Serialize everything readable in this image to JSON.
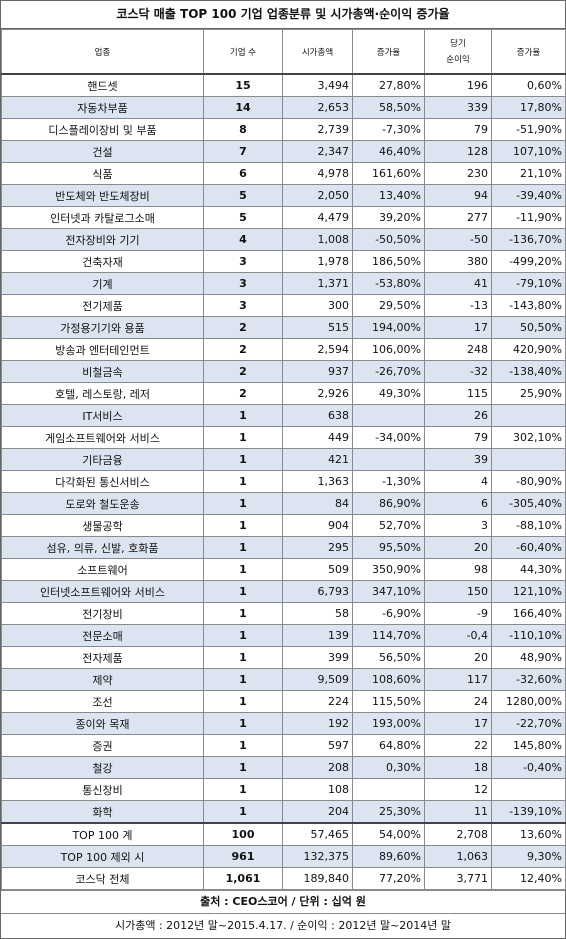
{
  "title": "코스닥 매출 TOP 100 기업 업종분류 및 시가총액·순이익 증가율",
  "headers": {
    "industry": "업종",
    "count": "기업 수",
    "mcap": "시가총액",
    "mcap_growth": "증가율",
    "profit_line1": "당기",
    "profit_line2": "순이익",
    "profit_growth": "증가율"
  },
  "rows": [
    {
      "industry": "핸드셋",
      "count": "15",
      "mcap": "3,494",
      "mcap_growth": "27,80%",
      "profit": "196",
      "profit_growth": "0,60%"
    },
    {
      "industry": "자동차부품",
      "count": "14",
      "mcap": "2,653",
      "mcap_growth": "58,50%",
      "profit": "339",
      "profit_growth": "17,80%"
    },
    {
      "industry": "디스플레이장비 및 부품",
      "count": "8",
      "mcap": "2,739",
      "mcap_growth": "-7,30%",
      "profit": "79",
      "profit_growth": "-51,90%"
    },
    {
      "industry": "건설",
      "count": "7",
      "mcap": "2,347",
      "mcap_growth": "46,40%",
      "profit": "128",
      "profit_growth": "107,10%"
    },
    {
      "industry": "식품",
      "count": "6",
      "mcap": "4,978",
      "mcap_growth": "161,60%",
      "profit": "230",
      "profit_growth": "21,10%"
    },
    {
      "industry": "반도체와 반도체장비",
      "count": "5",
      "mcap": "2,050",
      "mcap_growth": "13,40%",
      "profit": "94",
      "profit_growth": "-39,40%"
    },
    {
      "industry": "인터넷과 카탈로그소매",
      "count": "5",
      "mcap": "4,479",
      "mcap_growth": "39,20%",
      "profit": "277",
      "profit_growth": "-11,90%"
    },
    {
      "industry": "전자장비와 기기",
      "count": "4",
      "mcap": "1,008",
      "mcap_growth": "-50,50%",
      "profit": "-50",
      "profit_growth": "-136,70%"
    },
    {
      "industry": "건축자재",
      "count": "3",
      "mcap": "1,978",
      "mcap_growth": "186,50%",
      "profit": "380",
      "profit_growth": "-499,20%"
    },
    {
      "industry": "기계",
      "count": "3",
      "mcap": "1,371",
      "mcap_growth": "-53,80%",
      "profit": "41",
      "profit_growth": "-79,10%"
    },
    {
      "industry": "전기제품",
      "count": "3",
      "mcap": "300",
      "mcap_growth": "29,50%",
      "profit": "-13",
      "profit_growth": "-143,80%"
    },
    {
      "industry": "가정용기기와 용품",
      "count": "2",
      "mcap": "515",
      "mcap_growth": "194,00%",
      "profit": "17",
      "profit_growth": "50,50%"
    },
    {
      "industry": "방송과 엔터테인먼트",
      "count": "2",
      "mcap": "2,594",
      "mcap_growth": "106,00%",
      "profit": "248",
      "profit_growth": "420,90%"
    },
    {
      "industry": "비철금속",
      "count": "2",
      "mcap": "937",
      "mcap_growth": "-26,70%",
      "profit": "-32",
      "profit_growth": "-138,40%"
    },
    {
      "industry": "호텔, 레스토랑, 레저",
      "count": "2",
      "mcap": "2,926",
      "mcap_growth": "49,30%",
      "profit": "115",
      "profit_growth": "25,90%"
    },
    {
      "industry": "IT서비스",
      "count": "1",
      "mcap": "638",
      "mcap_growth": "",
      "profit": "26",
      "profit_growth": ""
    },
    {
      "industry": "게임소프트웨어와 서비스",
      "count": "1",
      "mcap": "449",
      "mcap_growth": "-34,00%",
      "profit": "79",
      "profit_growth": "302,10%"
    },
    {
      "industry": "기타금융",
      "count": "1",
      "mcap": "421",
      "mcap_growth": "",
      "profit": "39",
      "profit_growth": ""
    },
    {
      "industry": "다각화된 통신서비스",
      "count": "1",
      "mcap": "1,363",
      "mcap_growth": "-1,30%",
      "profit": "4",
      "profit_growth": "-80,90%"
    },
    {
      "industry": "도로와 철도운송",
      "count": "1",
      "mcap": "84",
      "mcap_growth": "86,90%",
      "profit": "6",
      "profit_growth": "-305,40%"
    },
    {
      "industry": "생물공학",
      "count": "1",
      "mcap": "904",
      "mcap_growth": "52,70%",
      "profit": "3",
      "profit_growth": "-88,10%"
    },
    {
      "industry": "섬유, 의류, 신발, 호화품",
      "count": "1",
      "mcap": "295",
      "mcap_growth": "95,50%",
      "profit": "20",
      "profit_growth": "-60,40%"
    },
    {
      "industry": "소프트웨어",
      "count": "1",
      "mcap": "509",
      "mcap_growth": "350,90%",
      "profit": "98",
      "profit_growth": "44,30%"
    },
    {
      "industry": "인터넷소프트웨어와 서비스",
      "count": "1",
      "mcap": "6,793",
      "mcap_growth": "347,10%",
      "profit": "150",
      "profit_growth": "121,10%"
    },
    {
      "industry": "전기장비",
      "count": "1",
      "mcap": "58",
      "mcap_growth": "-6,90%",
      "profit": "-9",
      "profit_growth": "166,40%"
    },
    {
      "industry": "전문소매",
      "count": "1",
      "mcap": "139",
      "mcap_growth": "114,70%",
      "profit": "-0,4",
      "profit_growth": "-110,10%"
    },
    {
      "industry": "전자제품",
      "count": "1",
      "mcap": "399",
      "mcap_growth": "56,50%",
      "profit": "20",
      "profit_growth": "48,90%"
    },
    {
      "industry": "제약",
      "count": "1",
      "mcap": "9,509",
      "mcap_growth": "108,60%",
      "profit": "117",
      "profit_growth": "-32,60%"
    },
    {
      "industry": "조선",
      "count": "1",
      "mcap": "224",
      "mcap_growth": "115,50%",
      "profit": "24",
      "profit_growth": "1280,00%"
    },
    {
      "industry": "종이와 목재",
      "count": "1",
      "mcap": "192",
      "mcap_growth": "193,00%",
      "profit": "17",
      "profit_growth": "-22,70%"
    },
    {
      "industry": "증권",
      "count": "1",
      "mcap": "597",
      "mcap_growth": "64,80%",
      "profit": "22",
      "profit_growth": "145,80%"
    },
    {
      "industry": "철강",
      "count": "1",
      "mcap": "208",
      "mcap_growth": "0,30%",
      "profit": "18",
      "profit_growth": "-0,40%"
    },
    {
      "industry": "통신장비",
      "count": "1",
      "mcap": "108",
      "mcap_growth": "",
      "profit": "12",
      "profit_growth": ""
    },
    {
      "industry": "화학",
      "count": "1",
      "mcap": "204",
      "mcap_growth": "25,30%",
      "profit": "11",
      "profit_growth": "-139,10%"
    }
  ],
  "totals": [
    {
      "industry": "TOP 100 계",
      "count": "100",
      "mcap": "57,465",
      "mcap_growth": "54,00%",
      "profit": "2,708",
      "profit_growth": "13,60%"
    },
    {
      "industry": "TOP 100 제외 시",
      "count": "961",
      "mcap": "132,375",
      "mcap_growth": "89,60%",
      "profit": "1,063",
      "profit_growth": "9,30%"
    },
    {
      "industry": "코스닥 전체",
      "count": "1,061",
      "mcap": "189,840",
      "mcap_growth": "77,20%",
      "profit": "3,771",
      "profit_growth": "12,40%"
    }
  ],
  "source": "출처 : CEO스코어 / 단위 : 십억 원",
  "note": "시가총액 : 2012년 말~2015.4.17. / 순이익 : 2012년 말~2014년 말"
}
